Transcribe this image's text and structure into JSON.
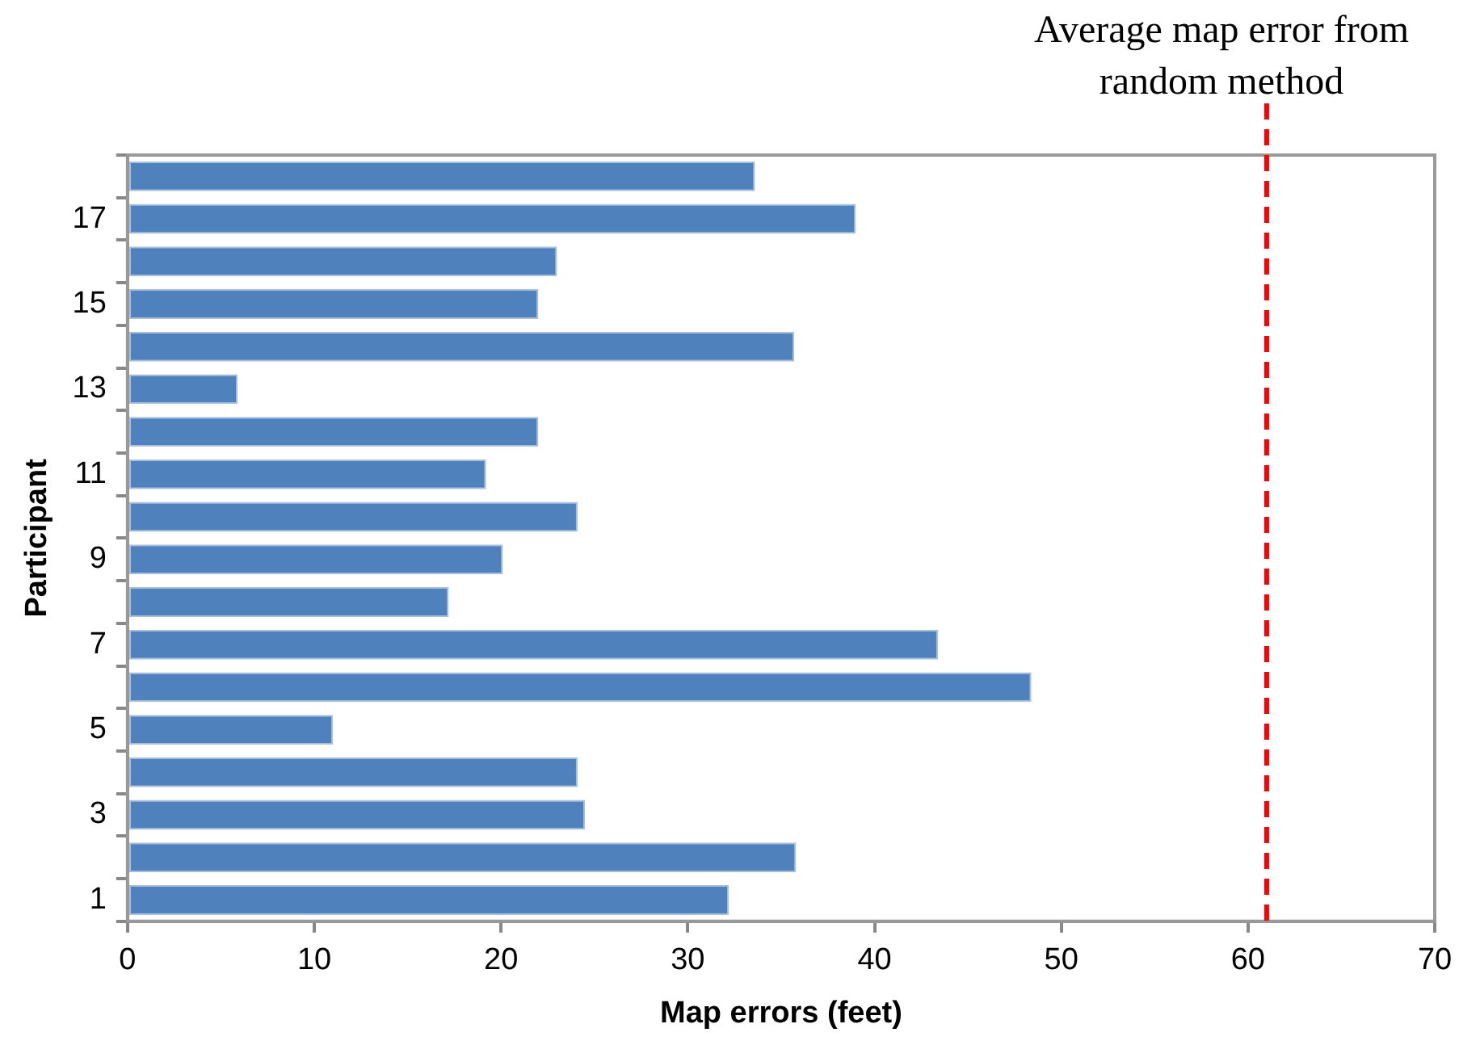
{
  "chart_data": {
    "type": "bar",
    "orientation": "horizontal",
    "xlabel": "Map errors (feet)",
    "ylabel": "Participant",
    "categories": [
      null,
      "17",
      null,
      "15",
      null,
      "13",
      null,
      "11",
      null,
      "9",
      null,
      "7",
      null,
      "5",
      null,
      "3",
      null,
      "1"
    ],
    "values": [
      33.6,
      39.0,
      23.0,
      22.0,
      35.7,
      5.9,
      22.0,
      19.2,
      24.1,
      20.1,
      17.2,
      43.4,
      48.4,
      11.0,
      24.1,
      24.5,
      35.8,
      32.2
    ],
    "color": "#4f81bd",
    "xlim": [
      0,
      70
    ],
    "xticks": [
      0,
      10,
      20,
      30,
      40,
      50,
      60,
      70
    ],
    "grid": false,
    "legend": false,
    "ref_lines": [
      {
        "axis": "x",
        "value": 61,
        "label": "Average map error from random method",
        "color": "#ff0000",
        "line_style": "dashed"
      }
    ]
  }
}
